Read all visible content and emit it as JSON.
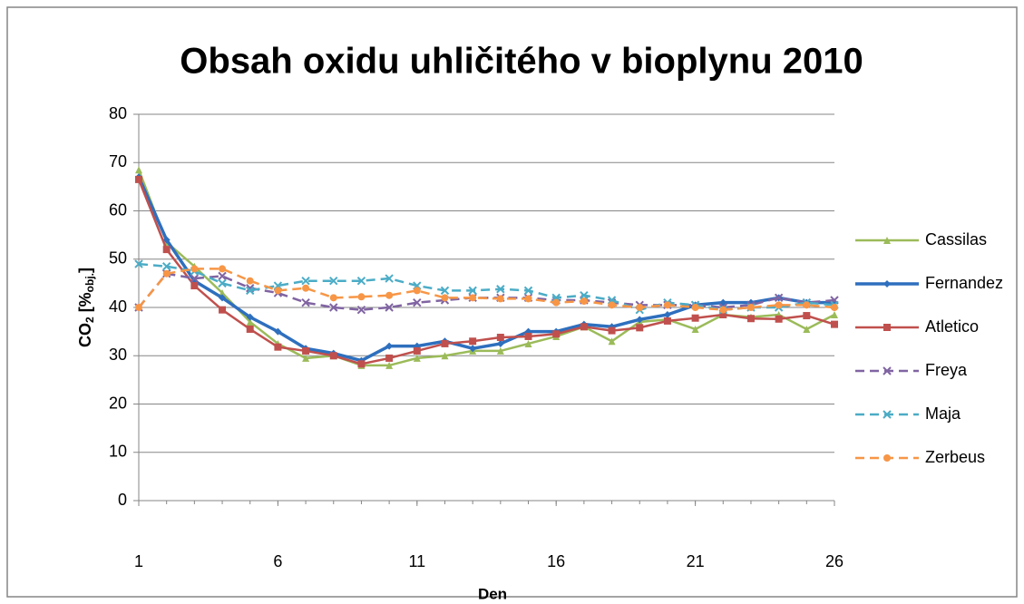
{
  "chart_data": {
    "type": "line",
    "title": "Obsah oxidu uhličitého v bioplynu  2010",
    "xlabel": "Den",
    "ylabel": [
      "CO",
      "2",
      " [%",
      "obj.",
      "]"
    ],
    "x": [
      1,
      2,
      3,
      4,
      5,
      6,
      7,
      8,
      9,
      10,
      11,
      12,
      13,
      14,
      15,
      16,
      17,
      18,
      19,
      20,
      21,
      22,
      23,
      24,
      25,
      26
    ],
    "xlim": [
      1,
      26
    ],
    "xticks": [
      1,
      6,
      11,
      16,
      21,
      26
    ],
    "ylim": [
      0,
      80
    ],
    "yticks": [
      0,
      10,
      20,
      30,
      40,
      50,
      60,
      70,
      80
    ],
    "grid": true,
    "legend": "right",
    "series": [
      {
        "name": "Cassilas",
        "color": "#9bbb59",
        "dash": false,
        "marker": "triangle",
        "values": [
          68.5,
          53.5,
          48.5,
          43,
          37,
          32.5,
          29.5,
          30,
          28,
          28,
          29.5,
          30,
          31,
          31,
          32.5,
          34,
          36,
          33,
          37,
          37.5,
          35.5,
          38.5,
          38,
          38.5,
          35.5,
          38.5
        ]
      },
      {
        "name": "Fernandez",
        "color": "#2e6fbe",
        "dash": false,
        "marker": "diamond",
        "values": [
          67,
          54,
          45.5,
          42,
          38,
          35,
          31.5,
          30.5,
          29,
          32,
          32,
          33,
          31.5,
          32.5,
          35,
          35,
          36.5,
          36,
          37.5,
          38.5,
          40.5,
          41,
          41,
          42,
          41,
          41
        ]
      },
      {
        "name": "Atletico",
        "color": "#c0504d",
        "dash": false,
        "marker": "square",
        "values": [
          66.5,
          52,
          44.5,
          39.5,
          35.5,
          31.8,
          31,
          30,
          28.3,
          29.5,
          31,
          32.5,
          33,
          33.8,
          34,
          34.5,
          36,
          35.2,
          35.8,
          37.2,
          37.8,
          38.5,
          37.7,
          37.6,
          38.3,
          36.5
        ]
      },
      {
        "name": "Freya",
        "color": "#8064a2",
        "dash": true,
        "marker": "x",
        "values": [
          40,
          47,
          46,
          46.5,
          44,
          43,
          41,
          40,
          39.5,
          40,
          41,
          41.5,
          42,
          42,
          42,
          41.5,
          41.5,
          41,
          40.5,
          40.5,
          40.5,
          40,
          40.5,
          42,
          41,
          41.5
        ]
      },
      {
        "name": "Maja",
        "color": "#4bacc6",
        "dash": true,
        "marker": "x",
        "values": [
          49,
          48.5,
          47.5,
          45,
          43.5,
          44.5,
          45.5,
          45.5,
          45.5,
          46,
          44.5,
          43.5,
          43.5,
          43.8,
          43.5,
          42,
          42.5,
          41.5,
          39.5,
          41,
          40.5,
          39.5,
          40,
          40,
          41,
          40.5
        ]
      },
      {
        "name": "Zerbeus",
        "color": "#f79646",
        "dash": true,
        "marker": "circle",
        "values": [
          40,
          47,
          48,
          48,
          45.5,
          43.5,
          44,
          42,
          42.2,
          42.5,
          43.5,
          42,
          42,
          41.8,
          41.8,
          41,
          41.3,
          40.5,
          40,
          40.5,
          40,
          39.5,
          40,
          40.5,
          40.5,
          40
        ]
      }
    ]
  }
}
